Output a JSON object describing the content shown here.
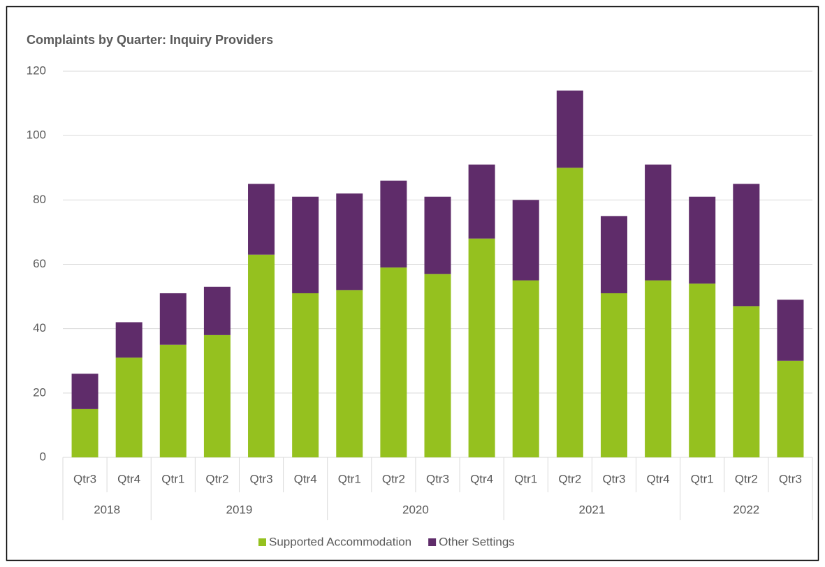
{
  "chart_data": {
    "type": "stacked_bar",
    "title": "Complaints by Quarter: Inquiry Providers",
    "groups": [
      {
        "name": "2018",
        "categories": [
          "Qtr3",
          "Qtr4"
        ]
      },
      {
        "name": "2019",
        "categories": [
          "Qtr1",
          "Qtr2",
          "Qtr3",
          "Qtr4"
        ]
      },
      {
        "name": "2020",
        "categories": [
          "Qtr1",
          "Qtr2",
          "Qtr3",
          "Qtr4"
        ]
      },
      {
        "name": "2021",
        "categories": [
          "Qtr1",
          "Qtr2",
          "Qtr3",
          "Qtr4"
        ]
      },
      {
        "name": "2022",
        "categories": [
          "Qtr1",
          "Qtr2",
          "Qtr3"
        ]
      }
    ],
    "series": [
      {
        "name": "Supported Accommodation",
        "color": "#95c11f",
        "values": [
          15,
          31,
          35,
          38,
          63,
          51,
          52,
          59,
          57,
          68,
          55,
          90,
          51,
          55,
          54,
          47,
          30
        ]
      },
      {
        "name": "Other Settings",
        "color": "#5f2c6a",
        "values": [
          11,
          11,
          16,
          15,
          22,
          30,
          30,
          27,
          24,
          23,
          25,
          24,
          24,
          36,
          27,
          38,
          19
        ]
      }
    ],
    "ylim": [
      0,
      120
    ],
    "yticks": [
      0,
      20,
      40,
      60,
      80,
      100,
      120
    ],
    "grid": true,
    "legend": "bottom"
  }
}
